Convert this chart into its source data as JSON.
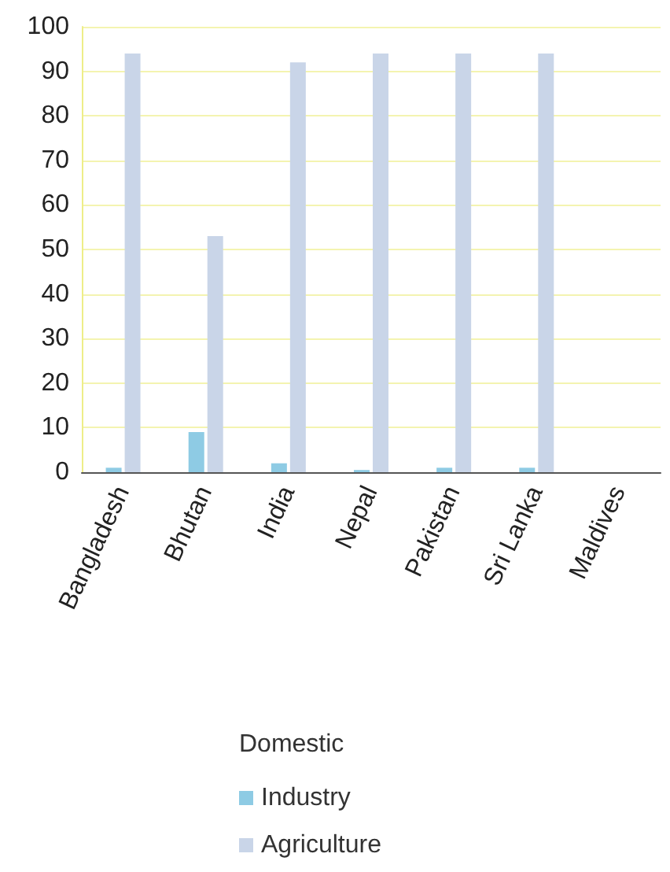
{
  "chart_data": {
    "type": "bar",
    "categories": [
      "Bangladesh",
      "Bhutan",
      "India",
      "Nepal",
      "Pakistan",
      "Sri Lanka",
      "Maldives"
    ],
    "series": [
      {
        "name": "Industry",
        "color": "#8ecbe4",
        "values": [
          1,
          9,
          2,
          0.5,
          1,
          1,
          0
        ]
      },
      {
        "name": "Agriculture",
        "color": "#c9d5e8",
        "values": [
          94,
          53,
          92,
          94,
          94,
          94,
          0
        ]
      }
    ],
    "ylim": [
      0,
      100
    ],
    "yticks": [
      0,
      10,
      20,
      30,
      40,
      50,
      60,
      70,
      80,
      90,
      100
    ],
    "grid": "y",
    "legend": "bottom",
    "legend_title": "Domestic"
  }
}
